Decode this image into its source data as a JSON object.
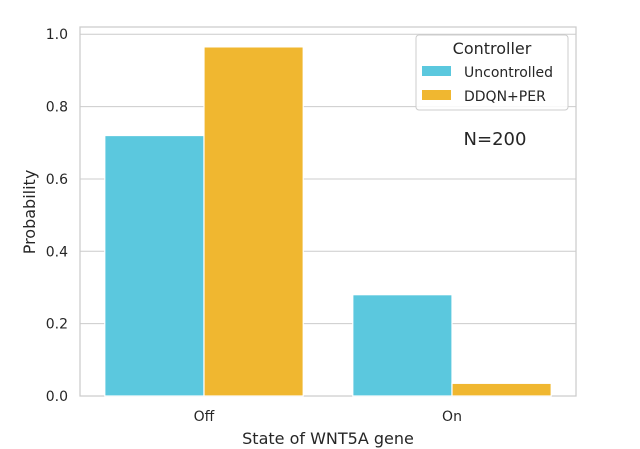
{
  "chart_data": {
    "type": "bar",
    "categories": [
      "Off",
      "On"
    ],
    "series": [
      {
        "name": "Uncontrolled",
        "values": [
          0.72,
          0.28
        ],
        "color": "#5bc8de"
      },
      {
        "name": "DDQN+PER",
        "values": [
          0.965,
          0.035
        ],
        "color": "#f0b730"
      }
    ],
    "xlabel": "State of WNT5A gene",
    "ylabel": "Probability",
    "ylim": [
      0,
      1.02
    ],
    "yticks": [
      0.0,
      0.2,
      0.4,
      0.6,
      0.8,
      1.0
    ],
    "ytick_labels": [
      "0.0",
      "0.2",
      "0.4",
      "0.6",
      "0.8",
      "1.0"
    ],
    "grid": true,
    "legend": {
      "title": "Controller",
      "placement": "top-right"
    },
    "annotation": "N=200"
  }
}
